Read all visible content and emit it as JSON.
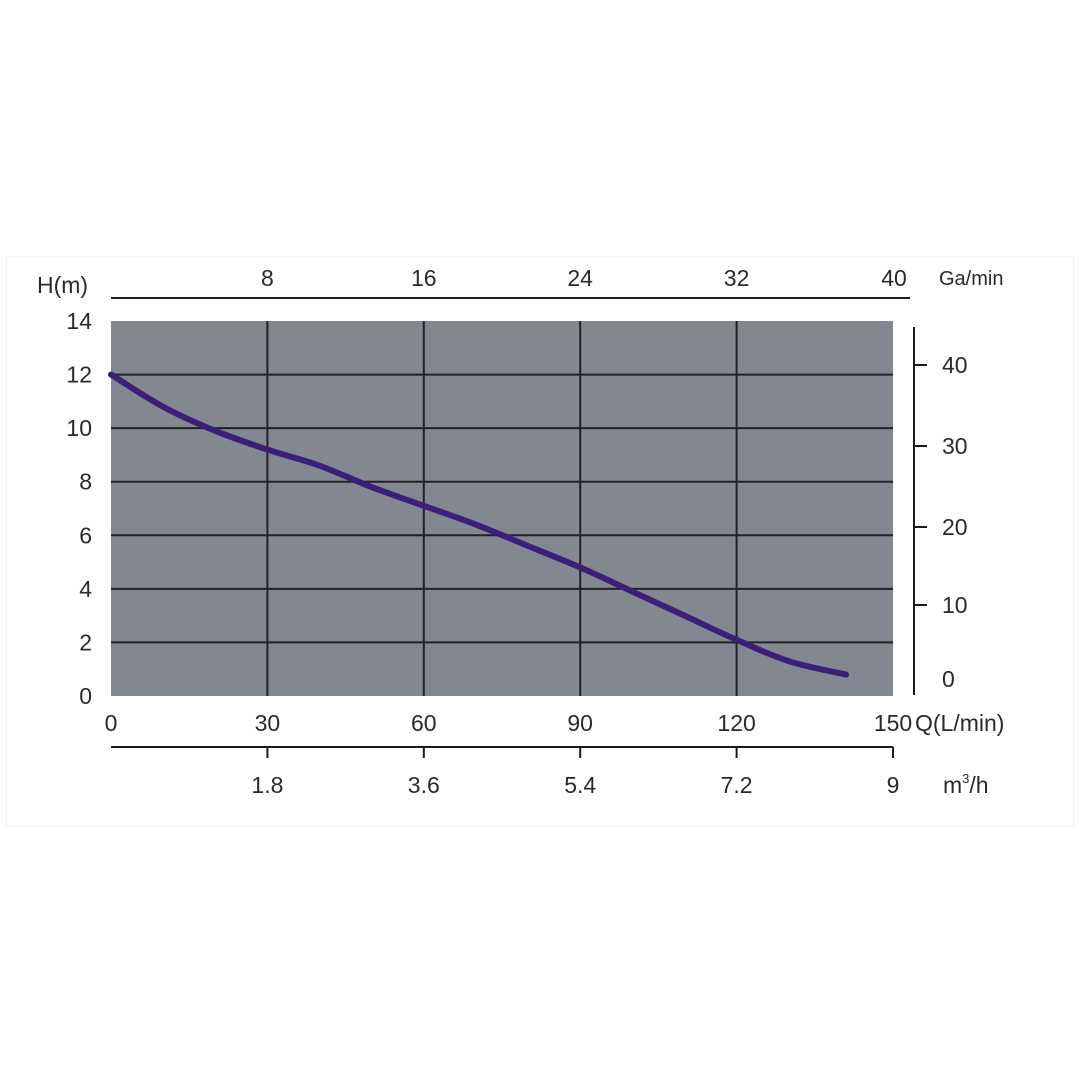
{
  "chart_data": {
    "type": "line",
    "title": "",
    "background_color": "#838790",
    "grid": true,
    "grid_color": "#222222",
    "line_color": "#3c1f78",
    "x_axis_primary": {
      "label": "Q(L/min)",
      "range": [
        0,
        150
      ],
      "ticks": [
        "0",
        "30",
        "60",
        "90",
        "120",
        "150"
      ]
    },
    "x_axis_top": {
      "label": "Ga/min",
      "ticks": [
        "8",
        "16",
        "24",
        "32",
        "40"
      ]
    },
    "x_axis_bottom": {
      "label_base": "m",
      "label_sup": "3",
      "label_tail": "/h",
      "ticks": [
        "1.8",
        "3.6",
        "5.4",
        "7.2",
        "9"
      ]
    },
    "y_axis_left": {
      "label": "H(m)",
      "range": [
        0,
        14
      ],
      "ticks": [
        "0",
        "2",
        "4",
        "6",
        "8",
        "10",
        "12",
        "14"
      ]
    },
    "y_axis_right": {
      "ticks": [
        "0",
        "10",
        "20",
        "30",
        "40"
      ]
    },
    "series": [
      {
        "x": [
          0,
          10,
          20,
          30,
          40,
          50,
          60,
          70,
          80,
          90,
          100,
          110,
          120,
          130,
          141
        ],
        "y": [
          12.0,
          10.8,
          9.9,
          9.2,
          8.6,
          7.8,
          7.1,
          6.4,
          5.6,
          4.8,
          3.9,
          3.0,
          2.1,
          1.3,
          0.8
        ]
      }
    ]
  }
}
